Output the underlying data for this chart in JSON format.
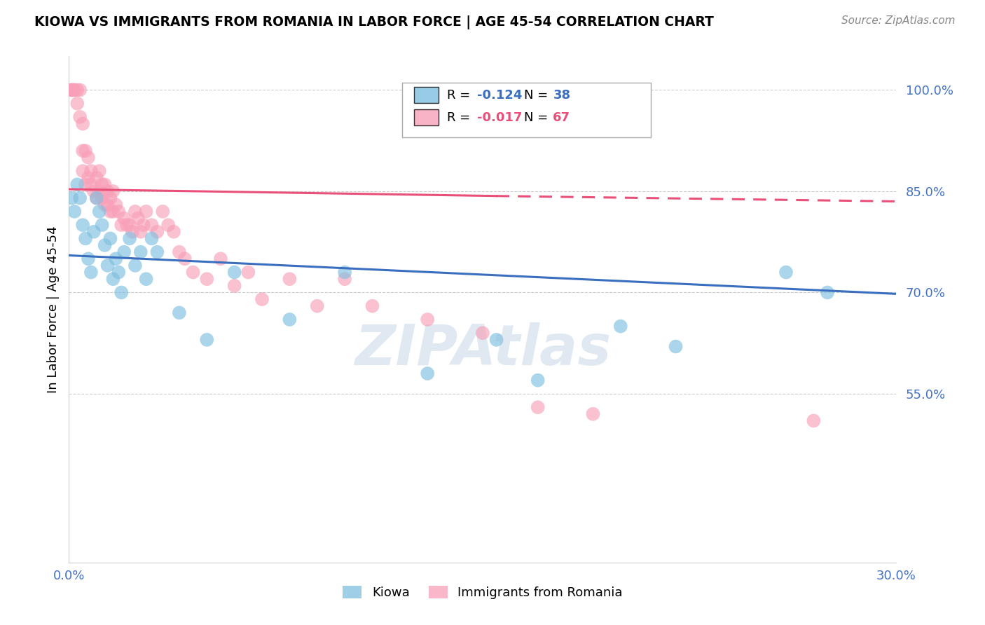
{
  "title": "KIOWA VS IMMIGRANTS FROM ROMANIA IN LABOR FORCE | AGE 45-54 CORRELATION CHART",
  "source": "Source: ZipAtlas.com",
  "ylabel": "In Labor Force | Age 45-54",
  "legend_blue_label": "Kiowa",
  "legend_pink_label": "Immigrants from Romania",
  "blue_R": -0.124,
  "blue_N": 38,
  "pink_R": -0.017,
  "pink_N": 67,
  "xlim": [
    0.0,
    0.3
  ],
  "ylim": [
    0.3,
    1.05
  ],
  "right_yticks": [
    1.0,
    0.85,
    0.7,
    0.55
  ],
  "right_ytick_labels": [
    "100.0%",
    "85.0%",
    "70.0%",
    "55.0%"
  ],
  "grid_color": "#cccccc",
  "blue_color": "#7fbfdf",
  "blue_line_color": "#3a6fbf",
  "pink_color": "#f8a0b8",
  "pink_line_color": "#e8507a",
  "watermark": "ZIPAtlas",
  "watermark_color": "#aec6df",
  "blue_scatter_x": [
    0.001,
    0.002,
    0.003,
    0.004,
    0.005,
    0.006,
    0.007,
    0.008,
    0.009,
    0.01,
    0.011,
    0.012,
    0.013,
    0.014,
    0.015,
    0.016,
    0.017,
    0.018,
    0.019,
    0.02,
    0.022,
    0.024,
    0.026,
    0.028,
    0.03,
    0.032,
    0.04,
    0.05,
    0.06,
    0.08,
    0.1,
    0.13,
    0.155,
    0.17,
    0.2,
    0.22,
    0.26,
    0.275
  ],
  "blue_scatter_y": [
    0.84,
    0.82,
    0.86,
    0.84,
    0.8,
    0.78,
    0.75,
    0.73,
    0.79,
    0.84,
    0.82,
    0.8,
    0.77,
    0.74,
    0.78,
    0.72,
    0.75,
    0.73,
    0.7,
    0.76,
    0.78,
    0.74,
    0.76,
    0.72,
    0.78,
    0.76,
    0.67,
    0.63,
    0.73,
    0.66,
    0.73,
    0.58,
    0.63,
    0.57,
    0.65,
    0.62,
    0.73,
    0.7
  ],
  "pink_scatter_x": [
    0.001,
    0.001,
    0.001,
    0.002,
    0.002,
    0.003,
    0.003,
    0.004,
    0.004,
    0.005,
    0.005,
    0.005,
    0.006,
    0.006,
    0.007,
    0.007,
    0.008,
    0.008,
    0.009,
    0.01,
    0.01,
    0.011,
    0.011,
    0.012,
    0.012,
    0.013,
    0.013,
    0.014,
    0.014,
    0.015,
    0.015,
    0.016,
    0.016,
    0.017,
    0.018,
    0.019,
    0.02,
    0.021,
    0.022,
    0.023,
    0.024,
    0.025,
    0.026,
    0.027,
    0.028,
    0.03,
    0.032,
    0.034,
    0.036,
    0.038,
    0.04,
    0.042,
    0.045,
    0.05,
    0.055,
    0.06,
    0.065,
    0.07,
    0.08,
    0.09,
    0.1,
    0.11,
    0.13,
    0.15,
    0.17,
    0.19,
    0.27
  ],
  "pink_scatter_y": [
    1.0,
    1.0,
    1.0,
    1.0,
    1.0,
    1.0,
    0.98,
    0.96,
    1.0,
    0.95,
    0.91,
    0.88,
    0.91,
    0.86,
    0.9,
    0.87,
    0.86,
    0.88,
    0.85,
    0.87,
    0.84,
    0.85,
    0.88,
    0.84,
    0.86,
    0.83,
    0.86,
    0.85,
    0.83,
    0.84,
    0.82,
    0.85,
    0.82,
    0.83,
    0.82,
    0.8,
    0.81,
    0.8,
    0.8,
    0.79,
    0.82,
    0.81,
    0.79,
    0.8,
    0.82,
    0.8,
    0.79,
    0.82,
    0.8,
    0.79,
    0.76,
    0.75,
    0.73,
    0.72,
    0.75,
    0.71,
    0.73,
    0.69,
    0.72,
    0.68,
    0.72,
    0.68,
    0.66,
    0.64,
    0.53,
    0.52,
    0.51
  ],
  "blue_line_x0": 0.0,
  "blue_line_y0": 0.755,
  "blue_line_x1": 0.3,
  "blue_line_y1": 0.698,
  "pink_line_solid_x0": 0.0,
  "pink_line_solid_y0": 0.853,
  "pink_line_solid_x1": 0.155,
  "pink_line_solid_y1": 0.843,
  "pink_line_dash_x0": 0.155,
  "pink_line_dash_y0": 0.843,
  "pink_line_dash_x1": 0.3,
  "pink_line_dash_y1": 0.835
}
